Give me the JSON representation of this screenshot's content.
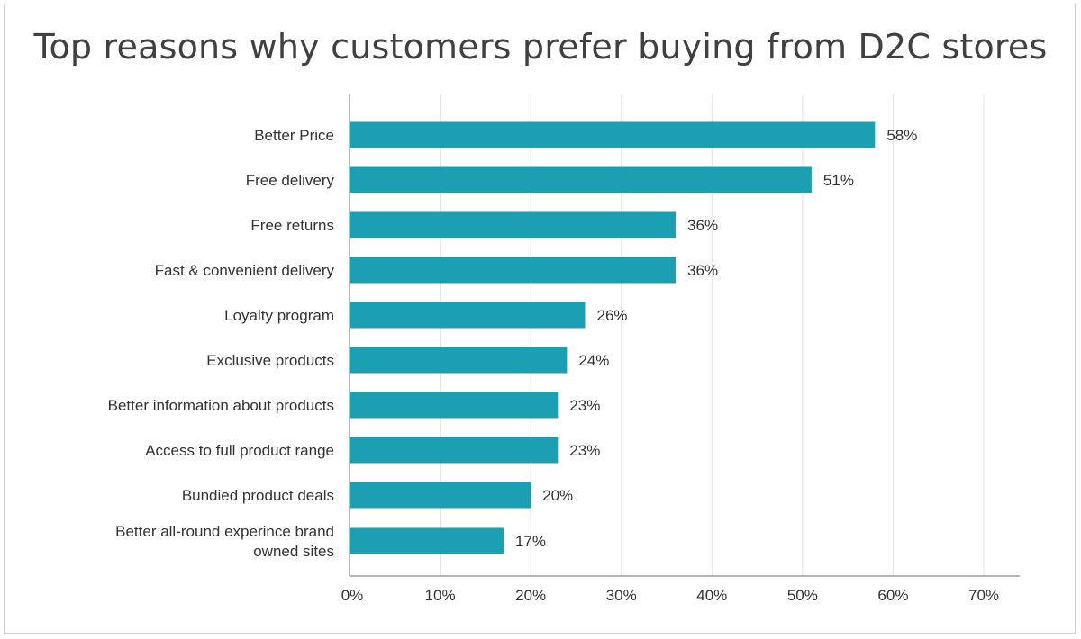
{
  "colors": {
    "bar": "#1ba0b3",
    "grid": "#e3e3e3",
    "axis": "#8a8a8a"
  },
  "chart_data": {
    "type": "bar",
    "orientation": "horizontal",
    "title": "Top reasons why customers prefer buying from D2C stores",
    "xlabel": "",
    "ylabel": "",
    "xlim": [
      0,
      70
    ],
    "grid": true,
    "x_ticks": [
      "0%",
      "10%",
      "20%",
      "30%",
      "40%",
      "50%",
      "60%",
      "70%"
    ],
    "categories": [
      [
        "Better Price"
      ],
      [
        "Free delivery"
      ],
      [
        "Free returns"
      ],
      [
        "Fast & convenient delivery"
      ],
      [
        "Loyalty program"
      ],
      [
        "Exclusive products"
      ],
      [
        "Better information about products"
      ],
      [
        "Access to full product range"
      ],
      [
        "Bundied product deals"
      ],
      [
        "Better all-round experince brand",
        "owned sites"
      ]
    ],
    "values": [
      58,
      51,
      36,
      36,
      26,
      24,
      23,
      23,
      20,
      17
    ],
    "value_labels": [
      "58%",
      "51%",
      "36%",
      "36%",
      "26%",
      "24%",
      "23%",
      "23%",
      "20%",
      "17%"
    ]
  }
}
